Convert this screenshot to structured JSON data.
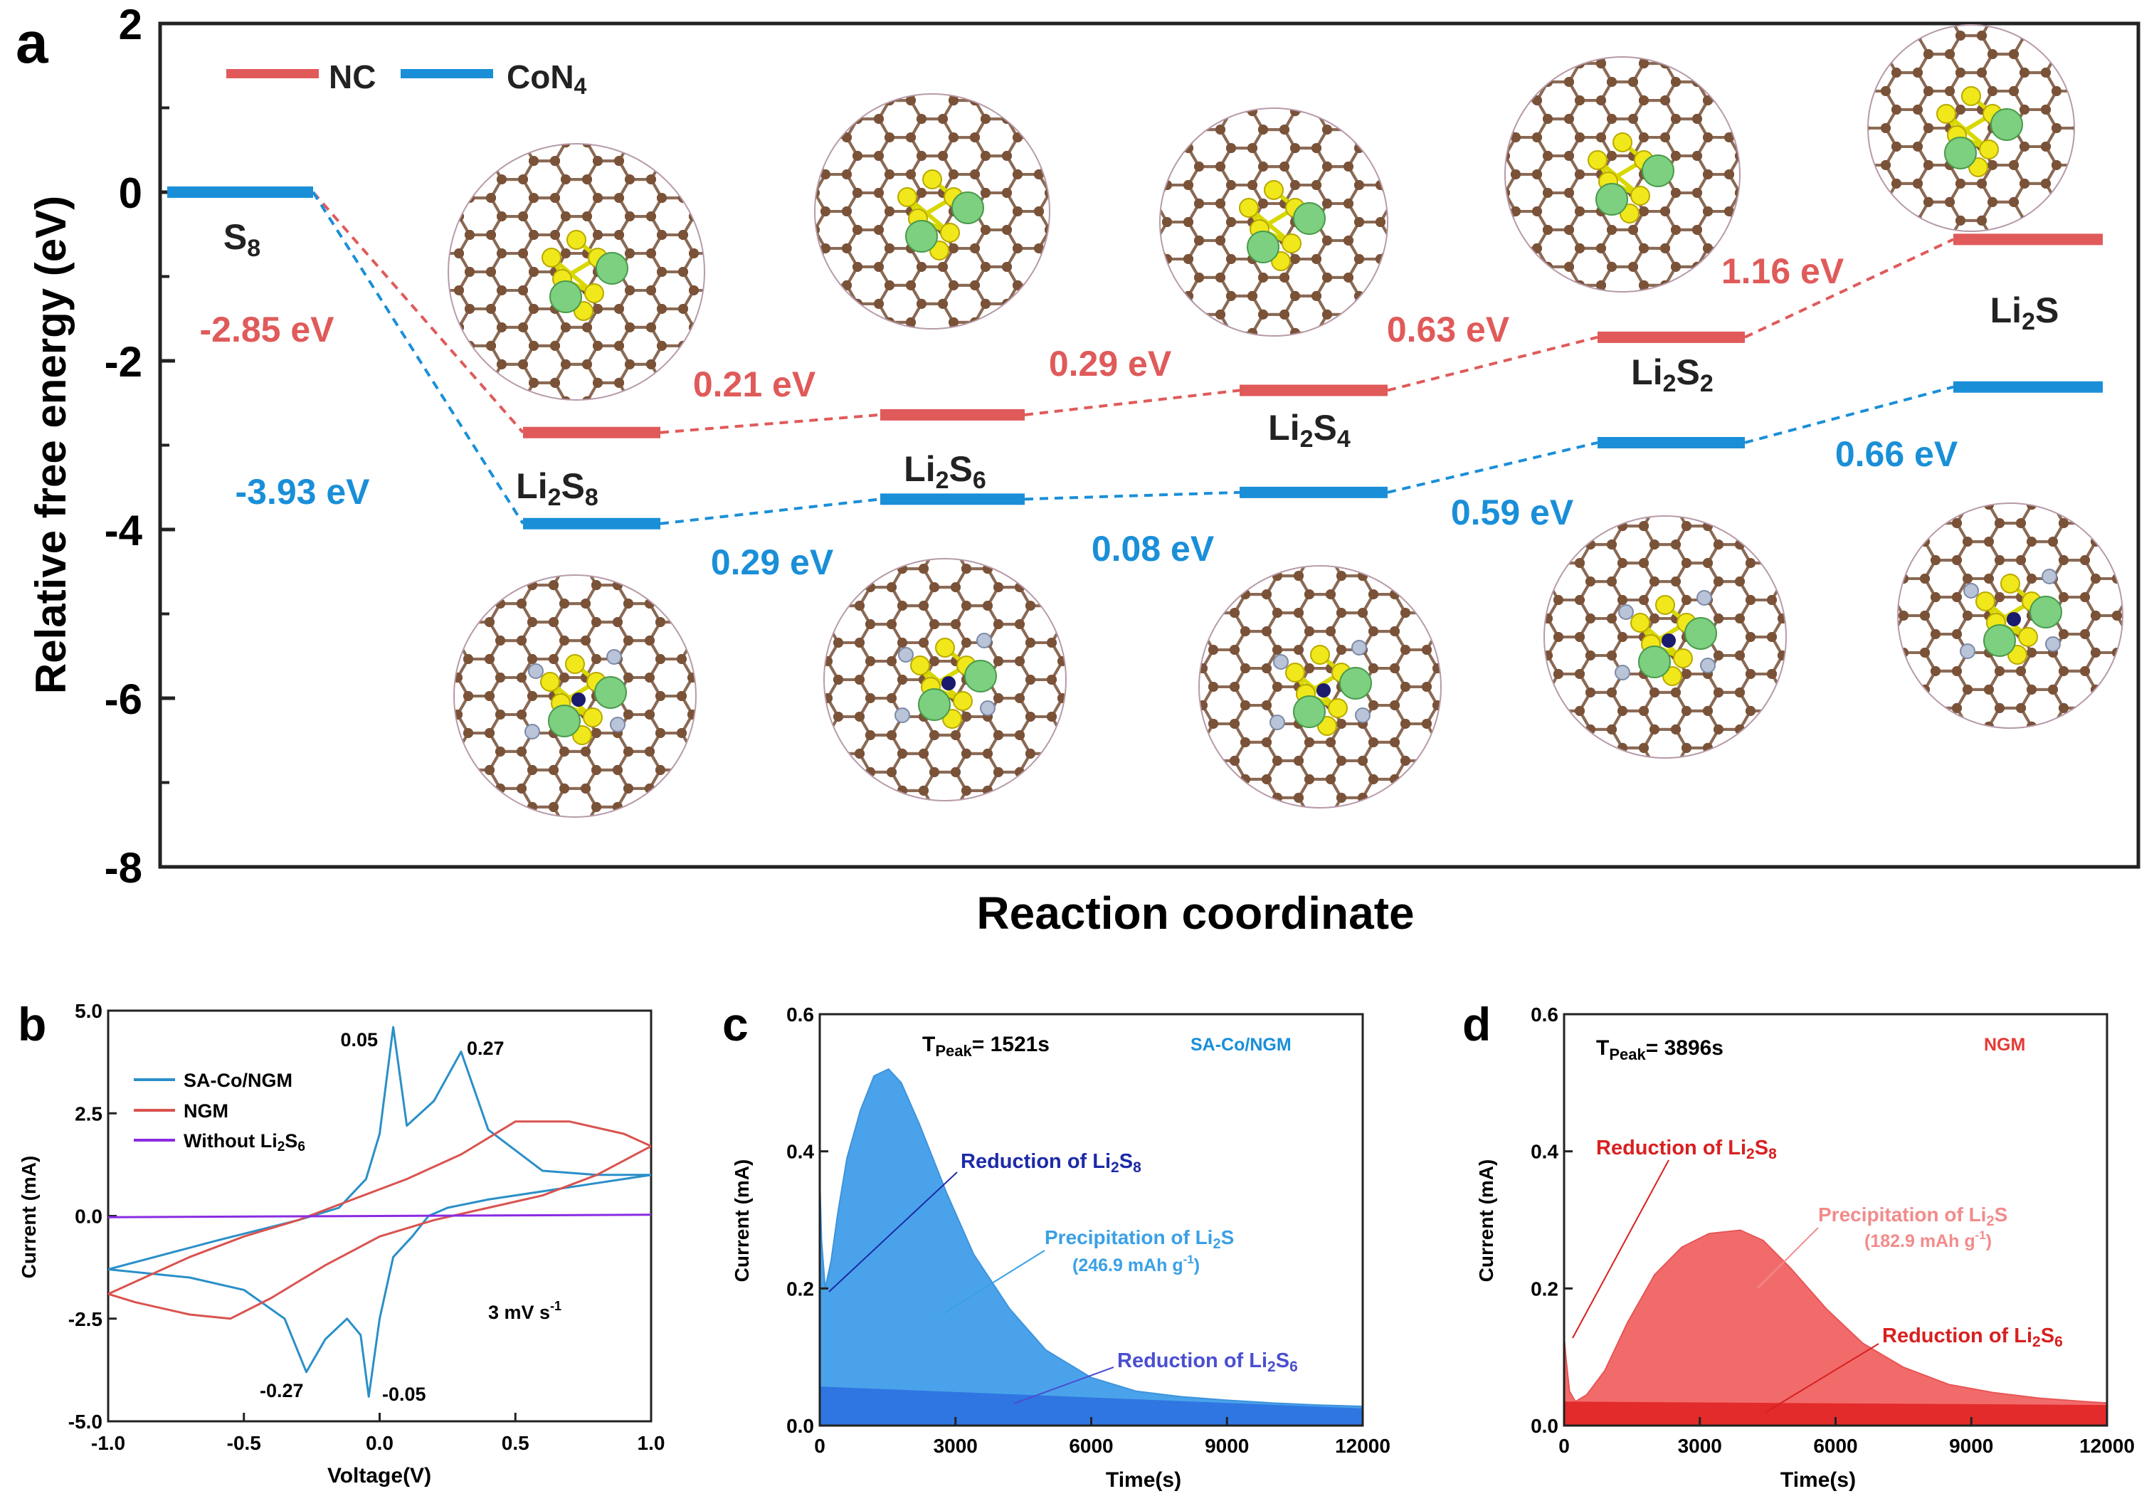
{
  "chart_data": [
    {
      "type": "energy-profile",
      "panel_label": "a",
      "xlabel": "Reaction coordinate",
      "ylabel": "Relative free energy (eV)",
      "ylim": [
        -8,
        2
      ],
      "yticks": [
        "2",
        "0",
        "-2",
        "-4",
        "-6",
        "-8"
      ],
      "ytick_values": [
        2,
        0,
        -2,
        -4,
        -6,
        -8
      ],
      "states": [
        "S8",
        "Li2S8",
        "Li2S6",
        "Li2S4",
        "Li2S2",
        "Li2S"
      ],
      "state_labels": [
        {
          "base": "S",
          "sub": "8"
        },
        {
          "base": "Li",
          "sub": "2",
          "base2": "S",
          "sub2": "8"
        },
        {
          "base": "Li",
          "sub": "2",
          "base2": "S",
          "sub2": "6"
        },
        {
          "base": "Li",
          "sub": "2",
          "base2": "S",
          "sub2": "4"
        },
        {
          "base": "Li",
          "sub": "2",
          "base2": "S",
          "sub2": "2"
        },
        {
          "base": "Li",
          "sub": "2",
          "base2": "S",
          "sub2": ""
        }
      ],
      "legend": {
        "nc": "NC",
        "con4_base": "CoN",
        "con4_sub": "4"
      },
      "series": [
        {
          "name": "NC",
          "color": "#e05a5a",
          "values": [
            0,
            -2.85,
            -2.64,
            -2.35,
            -1.72,
            -0.56
          ],
          "step_labels": [
            "-2.85 eV",
            "0.21 eV",
            "0.29 eV",
            "0.63 eV",
            "1.16 eV"
          ]
        },
        {
          "name": "CoN4",
          "color": "#1a8fd8",
          "values": [
            0,
            -3.93,
            -3.64,
            -3.56,
            -2.97,
            -2.31
          ],
          "step_labels": [
            "-3.93 eV",
            "0.29 eV",
            "0.08 eV",
            "0.59 eV",
            "0.66 eV"
          ]
        }
      ]
    },
    {
      "type": "line",
      "panel_label": "b",
      "xlabel": "Voltage(V)",
      "ylabel": "Current (mA)",
      "xlim": [
        -1.0,
        1.0
      ],
      "ylim": [
        -5.0,
        5.0
      ],
      "xticks": [
        "-1.0",
        "-0.5",
        "0.0",
        "0.5",
        "1.0"
      ],
      "xtick_values": [
        -1.0,
        -0.5,
        0.0,
        0.5,
        1.0
      ],
      "yticks": [
        "5.0",
        "2.5",
        "0.0",
        "-2.5",
        "-5.0"
      ],
      "ytick_values": [
        5.0,
        2.5,
        0.0,
        -2.5,
        -5.0
      ],
      "legend": [
        {
          "name": "SA-Co/NGM",
          "color": "#2a8fc8"
        },
        {
          "name": "NGM",
          "color": "#d9534f"
        },
        {
          "name": "Without Li",
          "sub": "2",
          "name2": "S",
          "sub2": "6",
          "color": "#8a2be2"
        }
      ],
      "annotation_scan": "3 mV s",
      "annotation_scan_sup": "-1",
      "peak_labels": [
        "0.05",
        "0.27",
        "-0.27",
        "-0.05"
      ],
      "series": [
        {
          "name": "SA-Co/NGM",
          "color": "#2a8fc8",
          "x": [
            -1.0,
            -0.6,
            -0.3,
            -0.15,
            -0.05,
            0.0,
            0.05,
            0.1,
            0.2,
            0.3,
            0.4,
            0.6,
            0.8,
            1.0,
            0.8,
            0.6,
            0.4,
            0.25,
            0.18,
            0.12,
            0.05,
            0.0,
            -0.04,
            -0.07,
            -0.12,
            -0.2,
            -0.27,
            -0.35,
            -0.5,
            -0.7,
            -1.0
          ],
          "y": [
            -1.3,
            -0.6,
            -0.1,
            0.2,
            0.9,
            2.0,
            4.6,
            2.2,
            2.8,
            4.0,
            2.1,
            1.1,
            1.0,
            1.0,
            0.8,
            0.6,
            0.4,
            0.2,
            0.0,
            -0.5,
            -1.0,
            -2.5,
            -4.4,
            -2.9,
            -2.5,
            -3.0,
            -3.8,
            -2.5,
            -1.8,
            -1.5,
            -1.3
          ]
        },
        {
          "name": "NGM",
          "color": "#d9534f",
          "x": [
            -1.0,
            -0.7,
            -0.5,
            -0.3,
            -0.1,
            0.1,
            0.3,
            0.5,
            0.7,
            0.9,
            1.0,
            0.8,
            0.6,
            0.4,
            0.2,
            0.0,
            -0.2,
            -0.4,
            -0.55,
            -0.7,
            -0.9,
            -1.0
          ],
          "y": [
            -1.9,
            -1.0,
            -0.5,
            -0.1,
            0.4,
            0.9,
            1.5,
            2.3,
            2.3,
            2.0,
            1.7,
            1.0,
            0.5,
            0.2,
            -0.1,
            -0.5,
            -1.2,
            -2.0,
            -2.5,
            -2.4,
            -2.1,
            -1.9
          ]
        },
        {
          "name": "Without Li2S6",
          "color": "#8a2be2",
          "x": [
            -1.0,
            1.0
          ],
          "y": [
            -0.03,
            0.03
          ]
        }
      ]
    },
    {
      "type": "area",
      "panel_label": "c",
      "xlabel": "Time(s)",
      "ylabel": "Current (mA)",
      "xlim": [
        0,
        12000
      ],
      "ylim": [
        0,
        0.6
      ],
      "xticks": [
        "0",
        "3000",
        "6000",
        "9000",
        "12000"
      ],
      "xtick_values": [
        0,
        3000,
        6000,
        9000,
        12000
      ],
      "yticks": [
        "0.6",
        "0.4",
        "0.2",
        "0.0"
      ],
      "ytick_values": [
        0.6,
        0.4,
        0.2,
        0.0
      ],
      "tpeak_prefix": "T",
      "tpeak_sub": "Peak",
      "tpeak_value": "= 1521s",
      "sample": "SA-Co/NGM",
      "sample_color": "#1a8fd8",
      "ann_reduction_s8": {
        "base": "Reduction of Li",
        "sub": "2",
        "base2": "S",
        "sub2": "8"
      },
      "ann_precip_line1": "Precipitation of Li",
      "ann_precip_line1_sub": "2",
      "ann_precip_line1_tail": "S",
      "ann_precip_line2": "(246.9 mAh g",
      "ann_precip_line2_sup": "-1",
      "ann_precip_line2_tail": ")",
      "ann_reduction_s6": {
        "base": "Reduction of Li",
        "sub": "2",
        "base2": "S",
        "sub2": "6"
      },
      "series": [
        {
          "name": "total current",
          "color": "#4aa3ea",
          "x": [
            0,
            40,
            120,
            250,
            400,
            600,
            900,
            1200,
            1521,
            1800,
            2200,
            2800,
            3400,
            4200,
            5000,
            6000,
            7000,
            8000,
            9000,
            10000,
            11000,
            12000
          ],
          "y": [
            0.36,
            0.27,
            0.2,
            0.24,
            0.31,
            0.39,
            0.46,
            0.51,
            0.52,
            0.5,
            0.44,
            0.34,
            0.25,
            0.17,
            0.11,
            0.07,
            0.05,
            0.042,
            0.037,
            0.033,
            0.03,
            0.028
          ]
        },
        {
          "name": "Li2S6 reduction baseline",
          "color": "#2a6fe0",
          "x": [
            0,
            12000
          ],
          "y": [
            0.057,
            0.025
          ]
        }
      ]
    },
    {
      "type": "area",
      "panel_label": "d",
      "xlabel": "Time(s)",
      "ylabel": "Current (mA)",
      "xlim": [
        0,
        12000
      ],
      "ylim": [
        0,
        0.6
      ],
      "xticks": [
        "0",
        "3000",
        "6000",
        "9000",
        "12000"
      ],
      "xtick_values": [
        0,
        3000,
        6000,
        9000,
        12000
      ],
      "yticks": [
        "0.6",
        "0.4",
        "0.2",
        "0.0"
      ],
      "ytick_values": [
        0.6,
        0.4,
        0.2,
        0.0
      ],
      "tpeak_prefix": "T",
      "tpeak_sub": "Peak",
      "tpeak_value": "= 3896s",
      "sample": "NGM",
      "sample_color": "#e53935",
      "ann_reduction_s8": {
        "base": "Reduction of Li",
        "sub": "2",
        "base2": "S",
        "sub2": "8"
      },
      "ann_precip_line1": "Precipitation of Li",
      "ann_precip_line1_sub": "2",
      "ann_precip_line1_tail": "S",
      "ann_precip_line2": "(182.9 mAh g",
      "ann_precip_line2_sup": "-1",
      "ann_precip_line2_tail": ")",
      "ann_reduction_s6": {
        "base": "Reduction of Li",
        "sub": "2",
        "base2": "S",
        "sub2": "6"
      },
      "series": [
        {
          "name": "total current",
          "color": "#f26b6b",
          "x": [
            0,
            40,
            120,
            250,
            500,
            900,
            1400,
            2000,
            2600,
            3200,
            3896,
            4400,
            5000,
            5800,
            6600,
            7500,
            8500,
            9500,
            10500,
            11500,
            12000
          ],
          "y": [
            0.13,
            0.1,
            0.05,
            0.035,
            0.045,
            0.08,
            0.15,
            0.22,
            0.26,
            0.28,
            0.285,
            0.27,
            0.23,
            0.17,
            0.12,
            0.085,
            0.06,
            0.048,
            0.04,
            0.035,
            0.033
          ]
        },
        {
          "name": "Li2S6 reduction baseline",
          "color": "#e02020",
          "x": [
            0,
            12000
          ],
          "y": [
            0.035,
            0.03
          ]
        }
      ]
    }
  ]
}
